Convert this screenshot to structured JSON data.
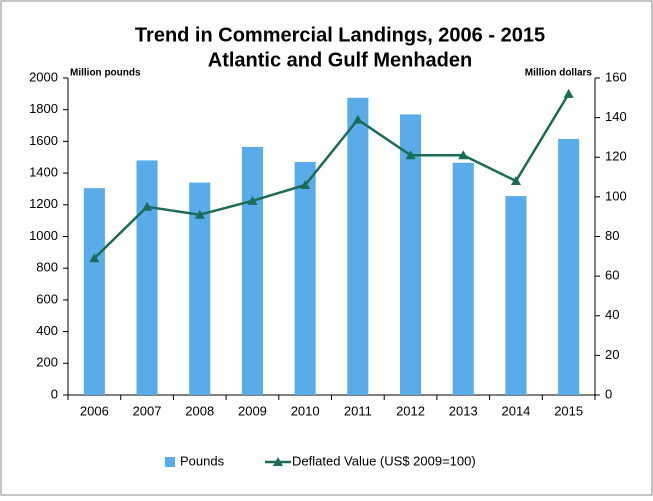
{
  "chart_data": {
    "type": "bar_line",
    "title": "Trend in Commercial Landings, 2006 - 2015",
    "subtitle": "Atlantic and Gulf Menhaden",
    "y_label": "Million pounds",
    "y2_label": "Million dollars",
    "categories": [
      "2006",
      "2007",
      "2008",
      "2009",
      "2010",
      "2011",
      "2012",
      "2013",
      "2014",
      "2015"
    ],
    "series": [
      {
        "name": "Pounds",
        "type": "bar",
        "color": "#5aabea",
        "values": [
          1305,
          1480,
          1340,
          1565,
          1470,
          1875,
          1770,
          1465,
          1255,
          1615
        ]
      },
      {
        "name": "Deflated Value (US$ 2009=100)",
        "type": "line",
        "axis": "y2",
        "color": "#1b6b57",
        "values": [
          69,
          95,
          91,
          98,
          106,
          139,
          121,
          121,
          108,
          152
        ]
      }
    ],
    "ylim": [
      0,
      2000
    ],
    "yticks": [
      0,
      200,
      400,
      600,
      800,
      1000,
      1200,
      1400,
      1600,
      1800,
      2000
    ],
    "y2lim": [
      0,
      160
    ],
    "y2ticks": [
      0,
      20,
      40,
      60,
      80,
      100,
      120,
      140,
      160
    ],
    "grid": false,
    "legend": "bottom"
  }
}
